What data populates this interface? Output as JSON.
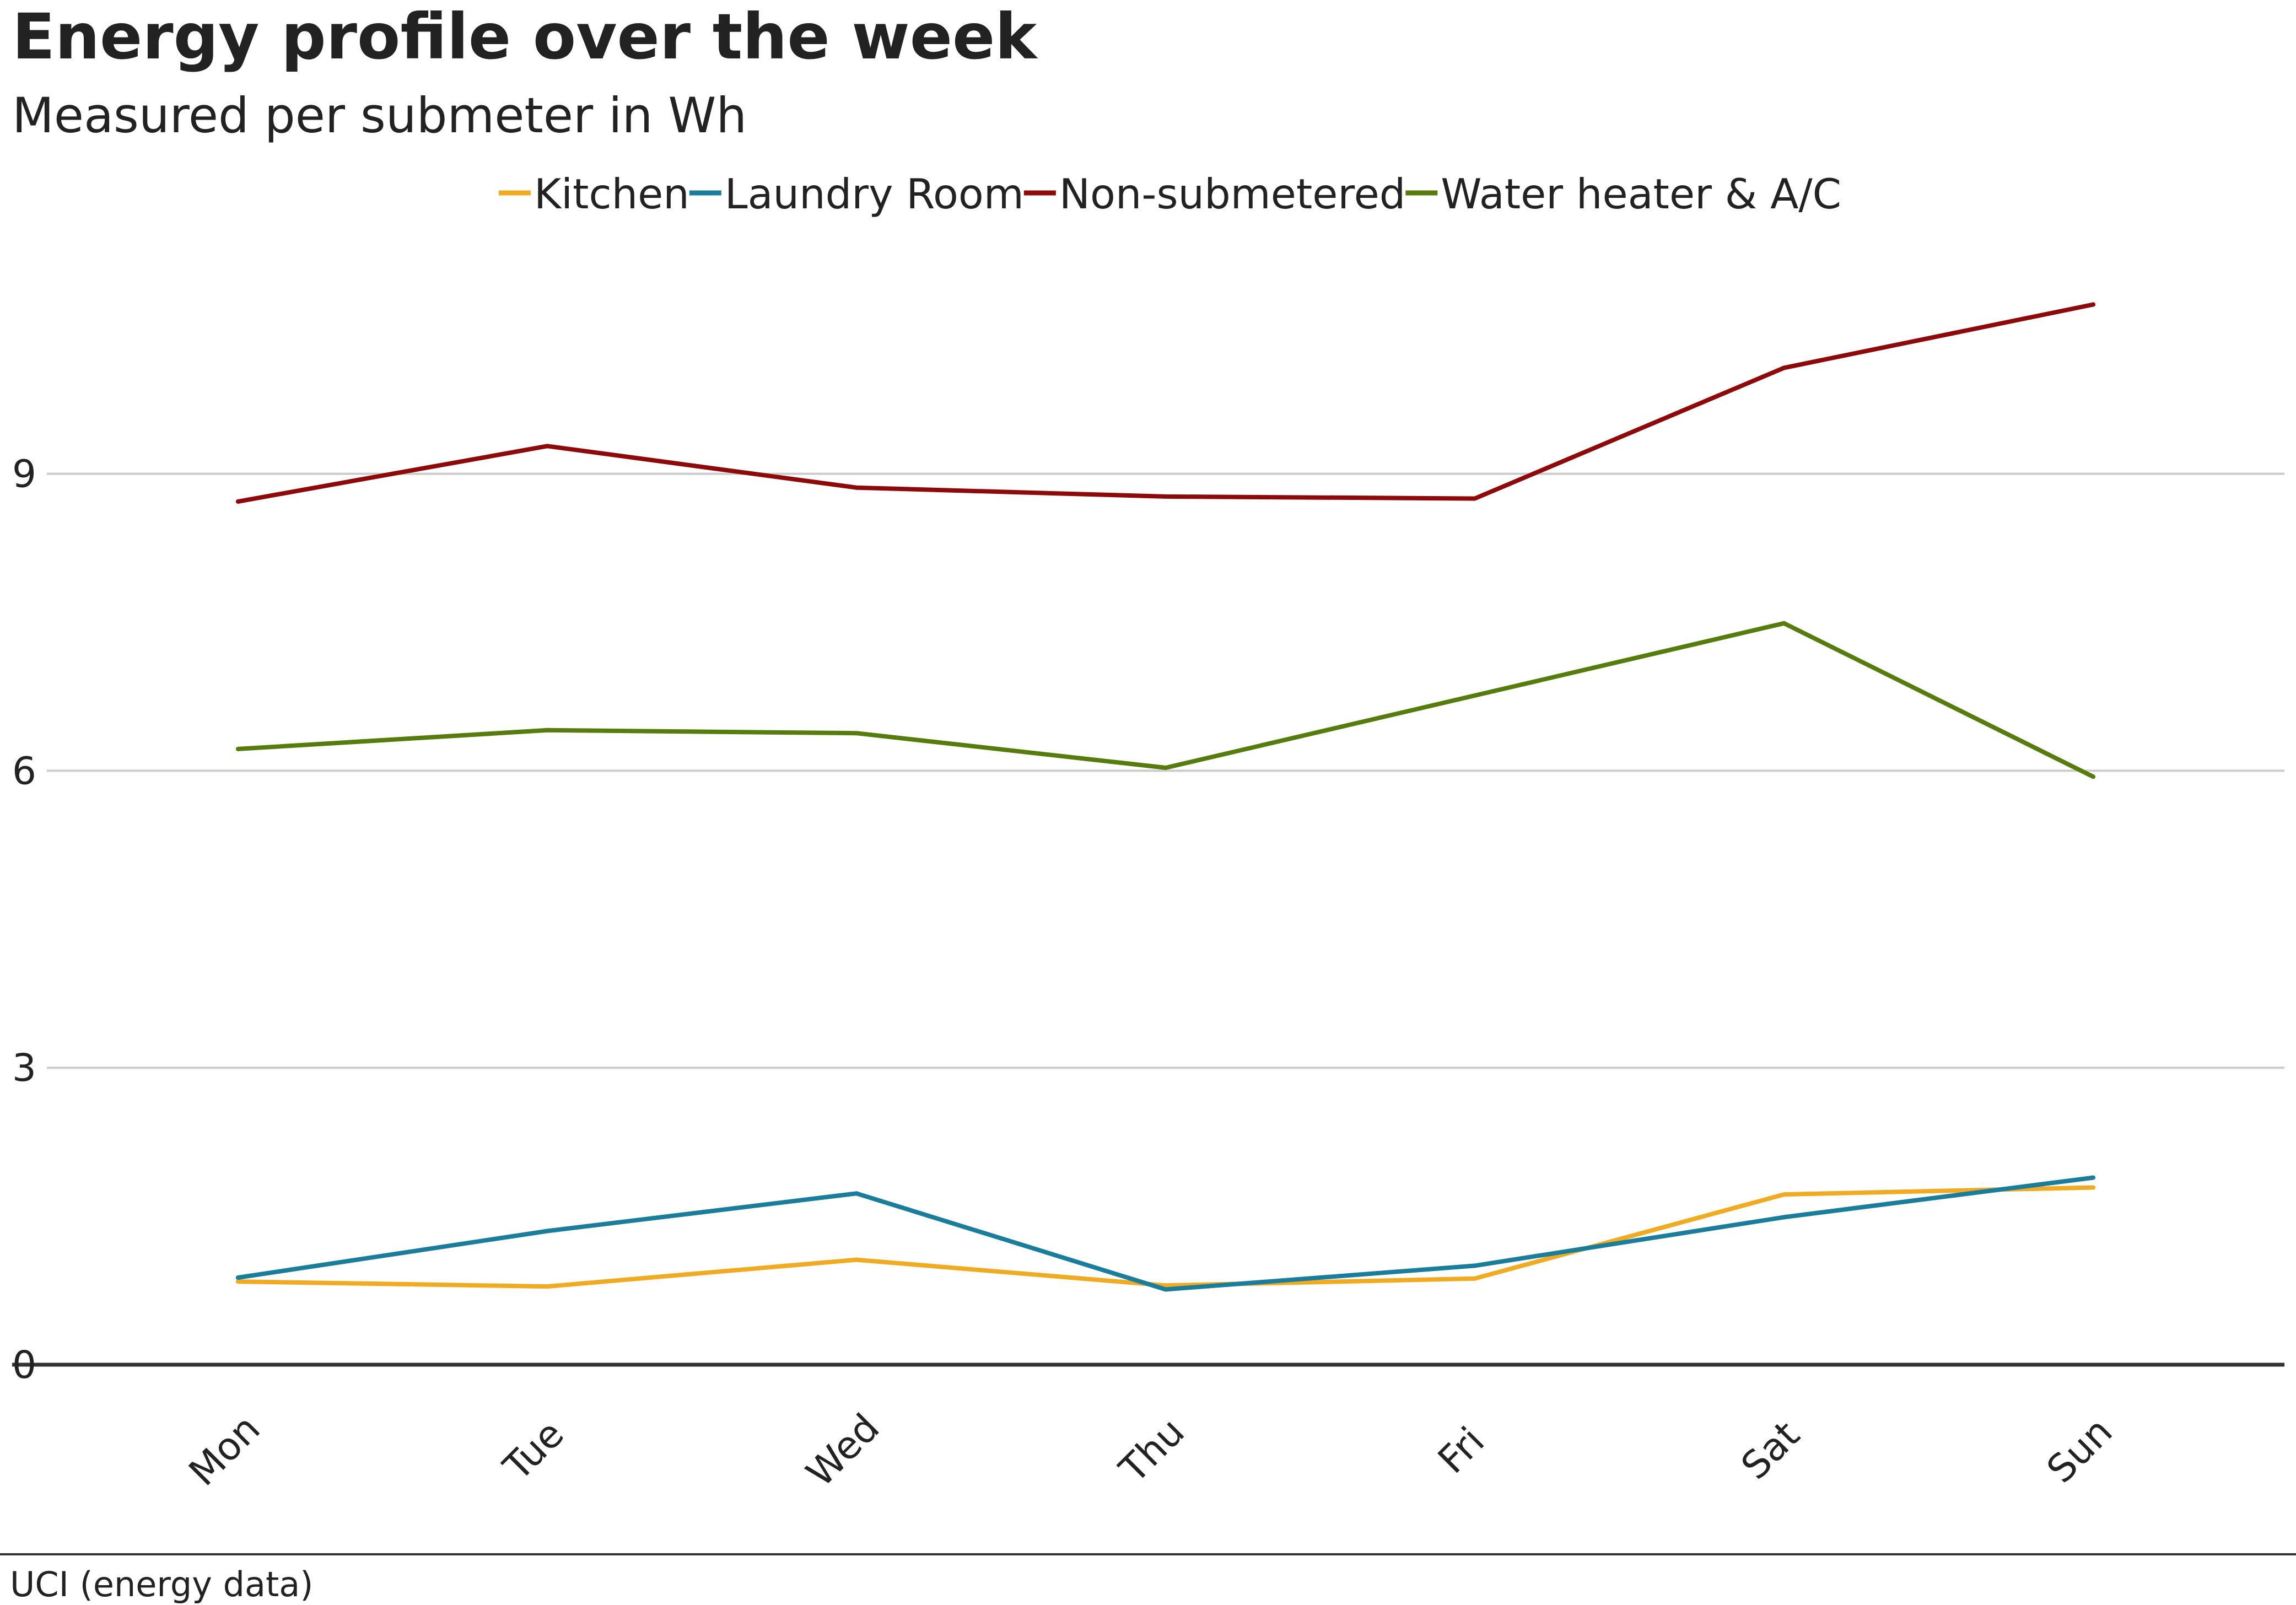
{
  "title": "Energy profile over the week",
  "subtitle": "Measured per submeter in Wh",
  "source": "UCI (energy data)",
  "chart_data": {
    "type": "line",
    "title": "Energy profile over the week",
    "subtitle": "Measured per submeter in Wh",
    "xlabel": "",
    "ylabel": "",
    "categories": [
      "Mon",
      "Tue",
      "Wed",
      "Thu",
      "Fri",
      "Sat",
      "Sun"
    ],
    "ylim": [
      0,
      11.5
    ],
    "yticks": [
      0,
      3,
      6,
      9
    ],
    "grid": true,
    "legend_position": "top-center",
    "series": [
      {
        "name": "Kitchen",
        "color": "#f0ab22",
        "values": [
          0.84,
          0.79,
          1.06,
          0.8,
          0.87,
          1.72,
          1.79
        ]
      },
      {
        "name": "Laundry Room",
        "color": "#1a7d9b",
        "values": [
          0.88,
          1.35,
          1.73,
          0.76,
          1.0,
          1.49,
          1.89
        ]
      },
      {
        "name": "Non-submetered",
        "color": "#8e0a0a",
        "values": [
          8.72,
          9.28,
          8.86,
          8.77,
          8.75,
          10.07,
          10.71
        ]
      },
      {
        "name": "Water heater & A/C",
        "color": "#567c0d",
        "values": [
          6.22,
          6.41,
          6.38,
          6.03,
          6.76,
          7.49,
          5.94
        ]
      }
    ]
  }
}
